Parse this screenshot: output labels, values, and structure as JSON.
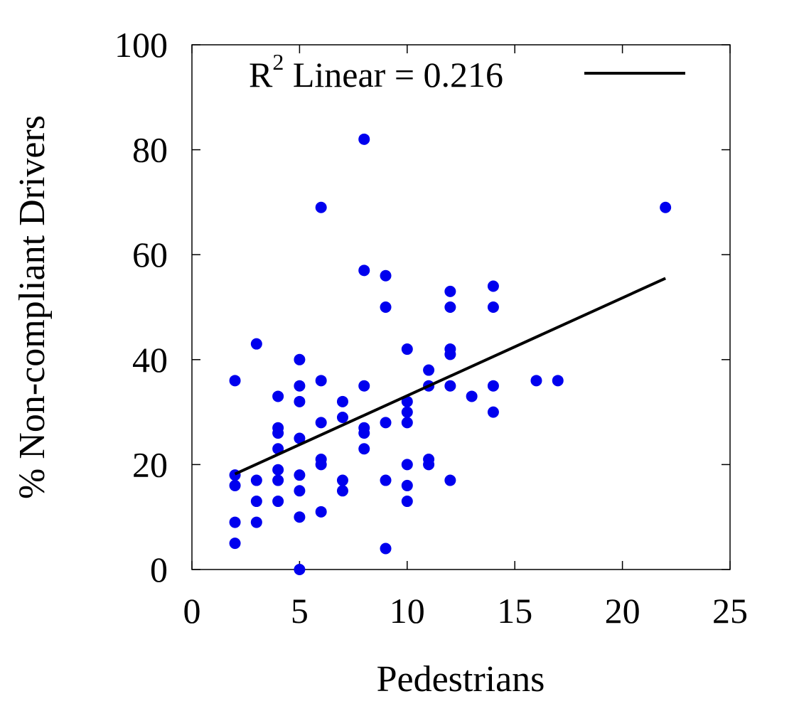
{
  "chart_data": {
    "type": "scatter",
    "xlabel": "Pedestrians",
    "ylabel": "% Non-compliant Drivers",
    "xlim": [
      0,
      25
    ],
    "ylim": [
      0,
      100
    ],
    "x_ticks": [
      0,
      5,
      10,
      15,
      20,
      25
    ],
    "y_ticks": [
      0,
      20,
      40,
      60,
      80,
      100
    ],
    "x_tick_labels": [
      "0",
      "5",
      "10",
      "15",
      "20",
      "25"
    ],
    "y_tick_labels": [
      "0",
      "20",
      "40",
      "60",
      "80",
      "100"
    ],
    "grid": false,
    "legend": {
      "placement": "top",
      "prefix": "R",
      "superscript": "2",
      "suffix": " Linear = 0.216"
    },
    "points": [
      {
        "x": 2,
        "y": 36
      },
      {
        "x": 2,
        "y": 18
      },
      {
        "x": 2,
        "y": 16
      },
      {
        "x": 2,
        "y": 9
      },
      {
        "x": 2,
        "y": 5
      },
      {
        "x": 3,
        "y": 43
      },
      {
        "x": 3,
        "y": 17
      },
      {
        "x": 3,
        "y": 13
      },
      {
        "x": 3,
        "y": 9
      },
      {
        "x": 4,
        "y": 33
      },
      {
        "x": 4,
        "y": 27
      },
      {
        "x": 4,
        "y": 26
      },
      {
        "x": 4,
        "y": 23
      },
      {
        "x": 4,
        "y": 19
      },
      {
        "x": 4,
        "y": 17
      },
      {
        "x": 4,
        "y": 13
      },
      {
        "x": 5,
        "y": 40
      },
      {
        "x": 5,
        "y": 35
      },
      {
        "x": 5,
        "y": 32
      },
      {
        "x": 5,
        "y": 25
      },
      {
        "x": 5,
        "y": 18
      },
      {
        "x": 5,
        "y": 15
      },
      {
        "x": 5,
        "y": 10
      },
      {
        "x": 5,
        "y": 0
      },
      {
        "x": 6,
        "y": 69
      },
      {
        "x": 6,
        "y": 36
      },
      {
        "x": 6,
        "y": 28
      },
      {
        "x": 6,
        "y": 21
      },
      {
        "x": 6,
        "y": 20
      },
      {
        "x": 6,
        "y": 11
      },
      {
        "x": 7,
        "y": 32
      },
      {
        "x": 7,
        "y": 29
      },
      {
        "x": 7,
        "y": 17
      },
      {
        "x": 7,
        "y": 15
      },
      {
        "x": 8,
        "y": 82
      },
      {
        "x": 8,
        "y": 57
      },
      {
        "x": 8,
        "y": 35
      },
      {
        "x": 8,
        "y": 27
      },
      {
        "x": 8,
        "y": 26
      },
      {
        "x": 8,
        "y": 23
      },
      {
        "x": 9,
        "y": 56
      },
      {
        "x": 9,
        "y": 50
      },
      {
        "x": 9,
        "y": 28
      },
      {
        "x": 9,
        "y": 17
      },
      {
        "x": 9,
        "y": 4
      },
      {
        "x": 10,
        "y": 42
      },
      {
        "x": 10,
        "y": 32
      },
      {
        "x": 10,
        "y": 30
      },
      {
        "x": 10,
        "y": 28
      },
      {
        "x": 10,
        "y": 20
      },
      {
        "x": 10,
        "y": 16
      },
      {
        "x": 10,
        "y": 13
      },
      {
        "x": 11,
        "y": 38
      },
      {
        "x": 11,
        "y": 35
      },
      {
        "x": 11,
        "y": 21
      },
      {
        "x": 11,
        "y": 20
      },
      {
        "x": 12,
        "y": 53
      },
      {
        "x": 12,
        "y": 50
      },
      {
        "x": 12,
        "y": 42
      },
      {
        "x": 12,
        "y": 41
      },
      {
        "x": 12,
        "y": 35
      },
      {
        "x": 12,
        "y": 17
      },
      {
        "x": 13,
        "y": 33
      },
      {
        "x": 14,
        "y": 54
      },
      {
        "x": 14,
        "y": 50
      },
      {
        "x": 14,
        "y": 35
      },
      {
        "x": 14,
        "y": 30
      },
      {
        "x": 16,
        "y": 36
      },
      {
        "x": 17,
        "y": 36
      },
      {
        "x": 22,
        "y": 69
      }
    ],
    "fit_line": {
      "x": [
        2,
        22
      ],
      "y": [
        18.2,
        55.5
      ]
    },
    "point_color": "#0000ee",
    "line_color": "#000000"
  }
}
